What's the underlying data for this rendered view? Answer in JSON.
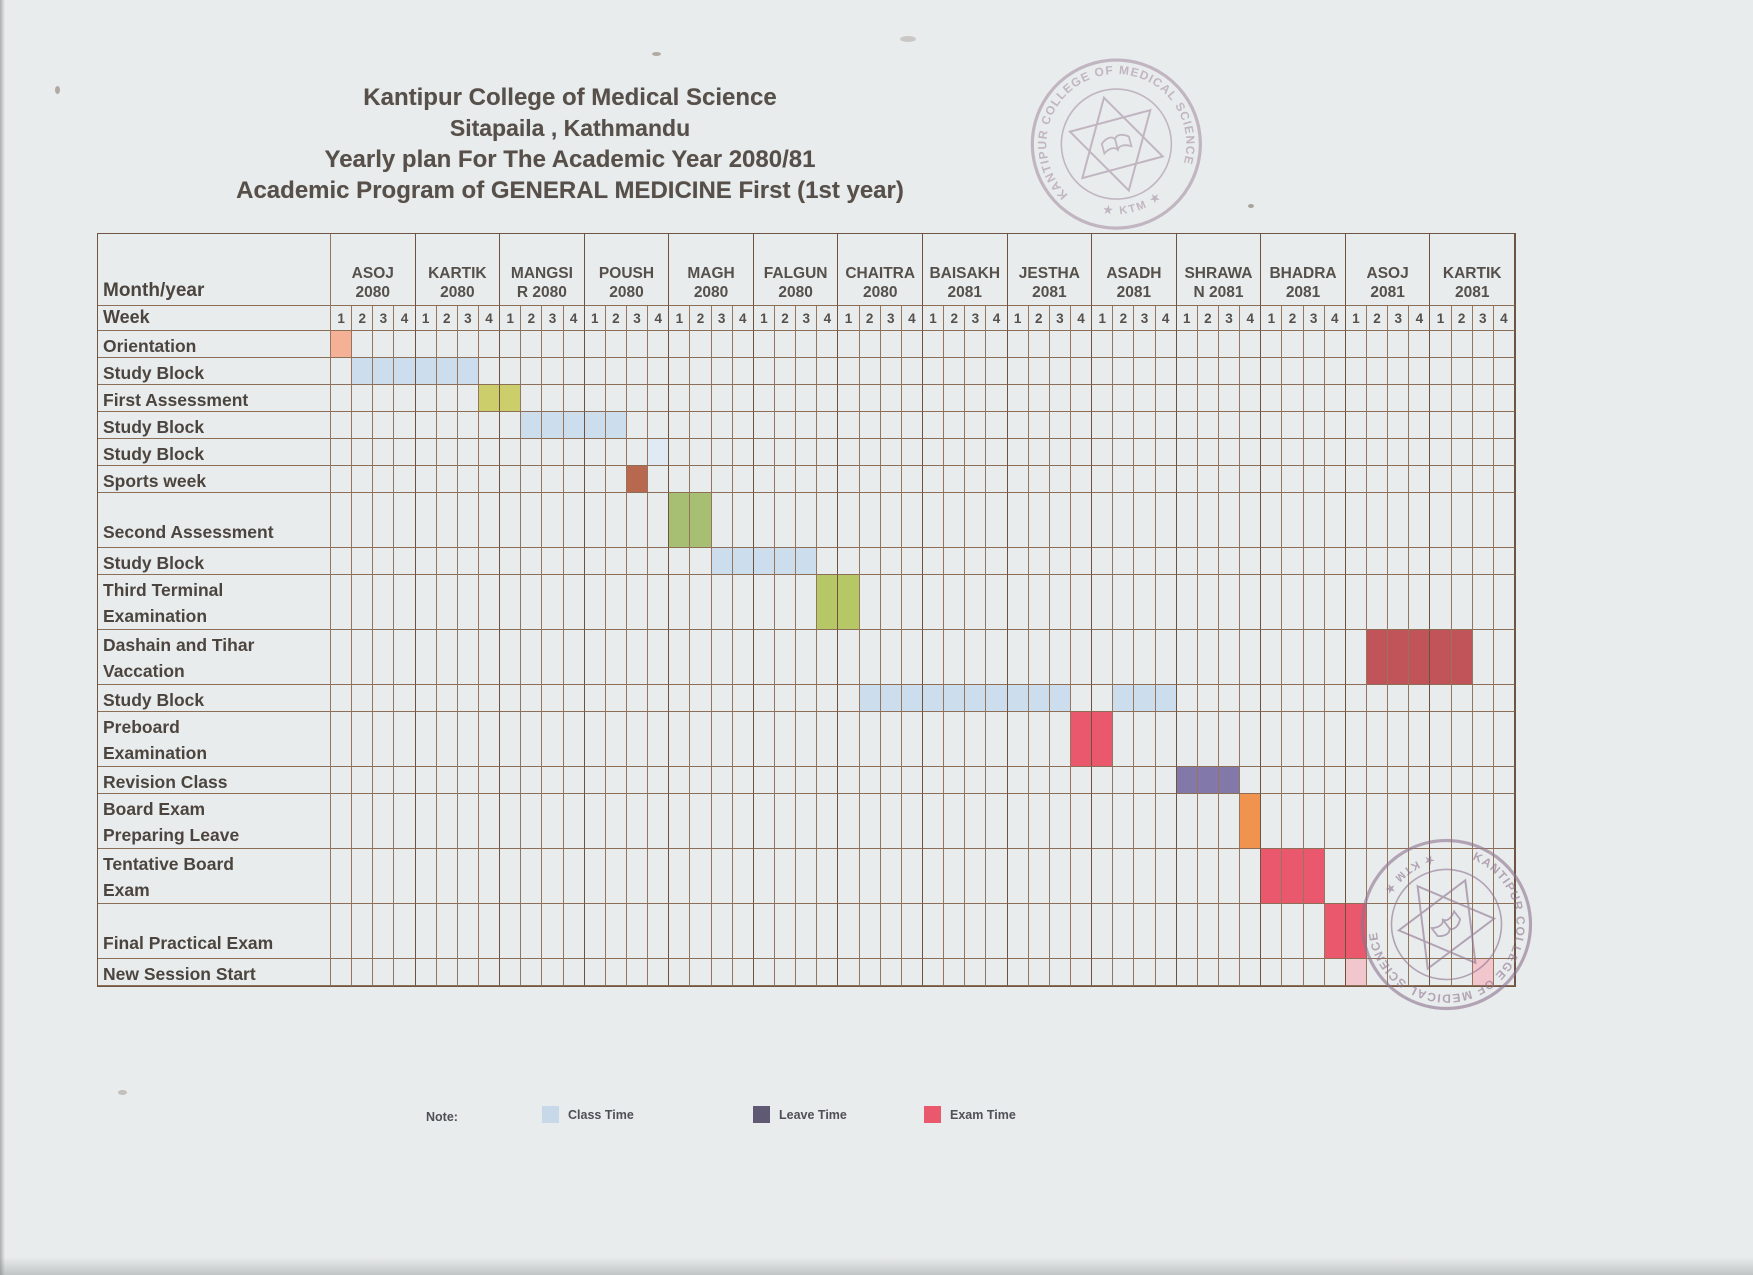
{
  "title": {
    "lines": [
      "Kantipur College of Medical Science",
      "Sitapaila , Kathmandu",
      "Yearly plan For The Academic Year 2080/81",
      "Academic Program of GENERAL MEDICINE First  (1st year)"
    ]
  },
  "schedule": {
    "corner": {
      "month_year": "Month/year",
      "week": "Week"
    },
    "months": [
      {
        "line1": "ASOJ",
        "line2": "2080"
      },
      {
        "line1": "KARTIK",
        "line2": "2080"
      },
      {
        "line1": "MANGSI",
        "line2": "R 2080"
      },
      {
        "line1": "POUSH",
        "line2": "2080"
      },
      {
        "line1": "MAGH",
        "line2": "2080"
      },
      {
        "line1": "FALGUN",
        "line2": "2080"
      },
      {
        "line1": "CHAITRA",
        "line2": "2080"
      },
      {
        "line1": "BAISAKH",
        "line2": "2081"
      },
      {
        "line1": "JESTHA",
        "line2": "2081"
      },
      {
        "line1": "ASADH",
        "line2": "2081"
      },
      {
        "line1": "SHRAWA",
        "line2": "N 2081"
      },
      {
        "line1": "BHADRA",
        "line2": "2081"
      },
      {
        "line1": "ASOJ",
        "line2": "2081"
      },
      {
        "line1": "KARTIK",
        "line2": "2081"
      }
    ],
    "week_labels": [
      "1",
      "2",
      "3",
      "4"
    ],
    "rows": [
      {
        "label_lines": [
          "Orientation"
        ],
        "tall": false,
        "spans": [
          {
            "month": 0,
            "week": 1,
            "len": 1,
            "color": "orientation"
          }
        ]
      },
      {
        "label_lines": [
          "Study Block"
        ],
        "tall": false,
        "spans": [
          {
            "month": 0,
            "week": 2,
            "len": 6,
            "color": "class_blue"
          }
        ]
      },
      {
        "label_lines": [
          "First Assessment"
        ],
        "tall": false,
        "spans": [
          {
            "month": 1,
            "week": 4,
            "len": 2,
            "color": "assess_yellow"
          }
        ]
      },
      {
        "label_lines": [
          "Study Block"
        ],
        "tall": false,
        "spans": [
          {
            "month": 2,
            "week": 2,
            "len": 5,
            "color": "class_blue"
          }
        ]
      },
      {
        "label_lines": [
          "Study Block"
        ],
        "tall": false,
        "spans": [
          {
            "month": 3,
            "week": 4,
            "len": 1,
            "color": "class_blue_light"
          }
        ]
      },
      {
        "label_lines": [
          "Sports week"
        ],
        "tall": false,
        "spans": [
          {
            "month": 3,
            "week": 3,
            "len": 1,
            "color": "sports_brown"
          }
        ]
      },
      {
        "label_lines": [
          "",
          "Second Assessment"
        ],
        "tall": true,
        "spans": [
          {
            "month": 4,
            "week": 1,
            "len": 2,
            "color": "assess_green"
          }
        ]
      },
      {
        "label_lines": [
          "Study Block"
        ],
        "tall": false,
        "spans": [
          {
            "month": 4,
            "week": 3,
            "len": 5,
            "color": "class_blue"
          }
        ]
      },
      {
        "label_lines": [
          "Third Terminal",
          "Examination"
        ],
        "tall": true,
        "spans": [
          {
            "month": 5,
            "week": 4,
            "len": 2,
            "color": "assess_lime"
          }
        ]
      },
      {
        "label_lines": [
          "Dashain and Tihar",
          "Vaccation"
        ],
        "tall": true,
        "spans": [
          {
            "month": 12,
            "week": 2,
            "len": 5,
            "color": "vacation_red"
          }
        ]
      },
      {
        "label_lines": [
          "Study Block"
        ],
        "tall": false,
        "spans": [
          {
            "month": 6,
            "week": 2,
            "len": 10,
            "color": "class_blue"
          },
          {
            "month": 9,
            "week": 2,
            "len": 3,
            "color": "class_blue"
          }
        ]
      },
      {
        "label_lines": [
          "Preboard",
          "Examination"
        ],
        "tall": true,
        "spans": [
          {
            "month": 8,
            "week": 4,
            "len": 2,
            "color": "exam_red"
          }
        ]
      },
      {
        "label_lines": [
          "Revision Class"
        ],
        "tall": false,
        "spans": [
          {
            "month": 10,
            "week": 1,
            "len": 3,
            "color": "leave_purple"
          }
        ]
      },
      {
        "label_lines": [
          "Board Exam",
          "Preparing Leave"
        ],
        "tall": true,
        "spans": [
          {
            "month": 10,
            "week": 4,
            "len": 1,
            "color": "leave_orange"
          }
        ]
      },
      {
        "label_lines": [
          "Tentative Board",
          "Exam"
        ],
        "tall": true,
        "spans": [
          {
            "month": 11,
            "week": 1,
            "len": 3,
            "color": "exam_red"
          }
        ]
      },
      {
        "label_lines": [
          "",
          "Final Practical Exam"
        ],
        "tall": true,
        "spans": [
          {
            "month": 11,
            "week": 4,
            "len": 2,
            "color": "exam_red"
          }
        ]
      },
      {
        "label_lines": [
          "New Session Start"
        ],
        "tall": false,
        "spans": [
          {
            "month": 12,
            "week": 1,
            "len": 1,
            "color": "session_pink"
          },
          {
            "month": 13,
            "week": 3,
            "len": 1,
            "color": "session_pink"
          }
        ]
      }
    ]
  },
  "legend": {
    "note": "Note:",
    "items": [
      {
        "label": "Class Time",
        "color": "#c7d8e8"
      },
      {
        "label": "Leave Time",
        "color": "#5f5973"
      },
      {
        "label": "Exam Time",
        "color": "#e9586c"
      }
    ]
  },
  "stamps": {
    "ring_text": "KANTIPUR COLLEGE OF MEDICAL SCIENCE",
    "center_text": "★ KTM ★"
  },
  "colors": {
    "orientation": "#f4b195",
    "class_blue": "#ccdded",
    "class_blue_light": "#dfeaf4",
    "assess_yellow": "#cbce6b",
    "sports_brown": "#b8684e",
    "assess_green": "#a7bf73",
    "assess_lime": "#b6c765",
    "vacation_red": "#c05458",
    "exam_red": "#e9586c",
    "leave_purple": "#8278a9",
    "leave_orange": "#f0934e",
    "session_pink": "#f2c6cd",
    "grid_line": "#8d6f58",
    "text": "#4c453f",
    "stamp": "#9a7f97"
  }
}
